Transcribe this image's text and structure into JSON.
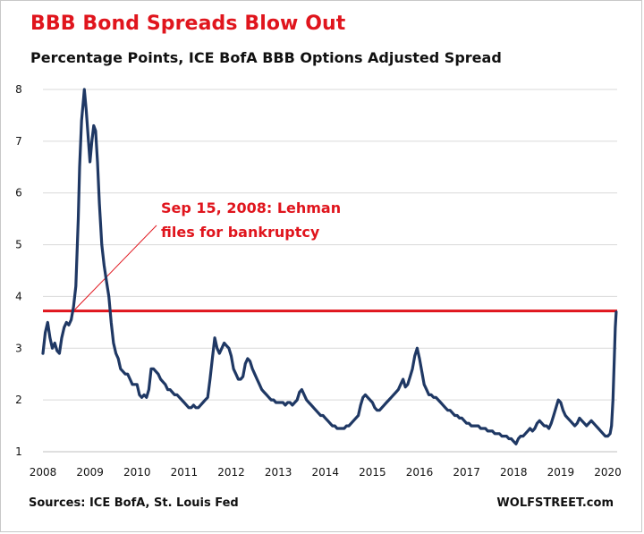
{
  "chart_data": {
    "type": "line",
    "title": "BBB Bond Spreads Blow Out",
    "subtitle": "Percentage Points, ICE BofA BBB Options Adjusted Spread",
    "xlabel": "",
    "ylabel": "",
    "xlim": [
      2008.0,
      2020.2
    ],
    "ylim": [
      1,
      8
    ],
    "x_ticks": [
      "2008",
      "2009",
      "2010",
      "2011",
      "2012",
      "2013",
      "2014",
      "2015",
      "2016",
      "2017",
      "2018",
      "2019",
      "2020"
    ],
    "y_ticks": [
      "1",
      "2",
      "3",
      "4",
      "5",
      "6",
      "7",
      "8"
    ],
    "grid": "horizontal",
    "series": [
      {
        "color": "#1f3864",
        "points": [
          [
            2008.0,
            2.9
          ],
          [
            2008.05,
            3.3
          ],
          [
            2008.1,
            3.5
          ],
          [
            2008.15,
            3.2
          ],
          [
            2008.2,
            3.0
          ],
          [
            2008.25,
            3.1
          ],
          [
            2008.3,
            2.95
          ],
          [
            2008.35,
            2.9
          ],
          [
            2008.4,
            3.2
          ],
          [
            2008.45,
            3.4
          ],
          [
            2008.5,
            3.5
          ],
          [
            2008.55,
            3.45
          ],
          [
            2008.6,
            3.55
          ],
          [
            2008.65,
            3.8
          ],
          [
            2008.7,
            4.2
          ],
          [
            2008.75,
            5.5
          ],
          [
            2008.78,
            6.5
          ],
          [
            2008.82,
            7.4
          ],
          [
            2008.86,
            7.8
          ],
          [
            2008.88,
            8.0
          ],
          [
            2008.92,
            7.6
          ],
          [
            2008.96,
            7.1
          ],
          [
            2009.0,
            6.6
          ],
          [
            2009.04,
            7.0
          ],
          [
            2009.08,
            7.3
          ],
          [
            2009.12,
            7.2
          ],
          [
            2009.16,
            6.6
          ],
          [
            2009.2,
            5.8
          ],
          [
            2009.25,
            5.0
          ],
          [
            2009.3,
            4.6
          ],
          [
            2009.35,
            4.3
          ],
          [
            2009.4,
            4.0
          ],
          [
            2009.45,
            3.5
          ],
          [
            2009.5,
            3.1
          ],
          [
            2009.55,
            2.9
          ],
          [
            2009.6,
            2.8
          ],
          [
            2009.65,
            2.6
          ],
          [
            2009.7,
            2.55
          ],
          [
            2009.75,
            2.5
          ],
          [
            2009.8,
            2.5
          ],
          [
            2009.85,
            2.4
          ],
          [
            2009.9,
            2.3
          ],
          [
            2009.95,
            2.3
          ],
          [
            2010.0,
            2.3
          ],
          [
            2010.05,
            2.1
          ],
          [
            2010.1,
            2.05
          ],
          [
            2010.15,
            2.1
          ],
          [
            2010.2,
            2.05
          ],
          [
            2010.25,
            2.2
          ],
          [
            2010.3,
            2.6
          ],
          [
            2010.35,
            2.6
          ],
          [
            2010.4,
            2.55
          ],
          [
            2010.45,
            2.5
          ],
          [
            2010.5,
            2.4
          ],
          [
            2010.55,
            2.35
          ],
          [
            2010.6,
            2.3
          ],
          [
            2010.65,
            2.2
          ],
          [
            2010.7,
            2.2
          ],
          [
            2010.75,
            2.15
          ],
          [
            2010.8,
            2.1
          ],
          [
            2010.85,
            2.1
          ],
          [
            2010.9,
            2.05
          ],
          [
            2010.95,
            2.0
          ],
          [
            2011.0,
            1.95
          ],
          [
            2011.05,
            1.9
          ],
          [
            2011.1,
            1.85
          ],
          [
            2011.15,
            1.85
          ],
          [
            2011.2,
            1.9
          ],
          [
            2011.25,
            1.85
          ],
          [
            2011.3,
            1.85
          ],
          [
            2011.35,
            1.9
          ],
          [
            2011.4,
            1.95
          ],
          [
            2011.45,
            2.0
          ],
          [
            2011.5,
            2.05
          ],
          [
            2011.55,
            2.4
          ],
          [
            2011.6,
            2.8
          ],
          [
            2011.65,
            3.2
          ],
          [
            2011.7,
            3.0
          ],
          [
            2011.75,
            2.9
          ],
          [
            2011.8,
            3.0
          ],
          [
            2011.85,
            3.1
          ],
          [
            2011.9,
            3.05
          ],
          [
            2011.95,
            3.0
          ],
          [
            2012.0,
            2.85
          ],
          [
            2012.05,
            2.6
          ],
          [
            2012.1,
            2.5
          ],
          [
            2012.15,
            2.4
          ],
          [
            2012.2,
            2.4
          ],
          [
            2012.25,
            2.45
          ],
          [
            2012.3,
            2.7
          ],
          [
            2012.35,
            2.8
          ],
          [
            2012.4,
            2.75
          ],
          [
            2012.45,
            2.6
          ],
          [
            2012.5,
            2.5
          ],
          [
            2012.55,
            2.4
          ],
          [
            2012.6,
            2.3
          ],
          [
            2012.65,
            2.2
          ],
          [
            2012.7,
            2.15
          ],
          [
            2012.75,
            2.1
          ],
          [
            2012.8,
            2.05
          ],
          [
            2012.85,
            2.0
          ],
          [
            2012.9,
            2.0
          ],
          [
            2012.95,
            1.95
          ],
          [
            2013.0,
            1.95
          ],
          [
            2013.05,
            1.95
          ],
          [
            2013.1,
            1.95
          ],
          [
            2013.15,
            1.9
          ],
          [
            2013.2,
            1.95
          ],
          [
            2013.25,
            1.95
          ],
          [
            2013.3,
            1.9
          ],
          [
            2013.35,
            1.95
          ],
          [
            2013.4,
            2.0
          ],
          [
            2013.45,
            2.15
          ],
          [
            2013.5,
            2.2
          ],
          [
            2013.55,
            2.1
          ],
          [
            2013.6,
            2.0
          ],
          [
            2013.65,
            1.95
          ],
          [
            2013.7,
            1.9
          ],
          [
            2013.75,
            1.85
          ],
          [
            2013.8,
            1.8
          ],
          [
            2013.85,
            1.75
          ],
          [
            2013.9,
            1.7
          ],
          [
            2013.95,
            1.7
          ],
          [
            2014.0,
            1.65
          ],
          [
            2014.05,
            1.6
          ],
          [
            2014.1,
            1.55
          ],
          [
            2014.15,
            1.5
          ],
          [
            2014.2,
            1.5
          ],
          [
            2014.25,
            1.45
          ],
          [
            2014.3,
            1.45
          ],
          [
            2014.35,
            1.45
          ],
          [
            2014.4,
            1.45
          ],
          [
            2014.45,
            1.5
          ],
          [
            2014.5,
            1.5
          ],
          [
            2014.55,
            1.55
          ],
          [
            2014.6,
            1.6
          ],
          [
            2014.65,
            1.65
          ],
          [
            2014.7,
            1.7
          ],
          [
            2014.75,
            1.9
          ],
          [
            2014.8,
            2.05
          ],
          [
            2014.85,
            2.1
          ],
          [
            2014.9,
            2.05
          ],
          [
            2014.95,
            2.0
          ],
          [
            2015.0,
            1.95
          ],
          [
            2015.05,
            1.85
          ],
          [
            2015.1,
            1.8
          ],
          [
            2015.15,
            1.8
          ],
          [
            2015.2,
            1.85
          ],
          [
            2015.25,
            1.9
          ],
          [
            2015.3,
            1.95
          ],
          [
            2015.35,
            2.0
          ],
          [
            2015.4,
            2.05
          ],
          [
            2015.45,
            2.1
          ],
          [
            2015.5,
            2.15
          ],
          [
            2015.55,
            2.2
          ],
          [
            2015.6,
            2.3
          ],
          [
            2015.65,
            2.4
          ],
          [
            2015.7,
            2.25
          ],
          [
            2015.75,
            2.3
          ],
          [
            2015.8,
            2.45
          ],
          [
            2015.85,
            2.6
          ],
          [
            2015.9,
            2.85
          ],
          [
            2015.95,
            3.0
          ],
          [
            2016.0,
            2.8
          ],
          [
            2016.05,
            2.55
          ],
          [
            2016.1,
            2.3
          ],
          [
            2016.15,
            2.2
          ],
          [
            2016.2,
            2.1
          ],
          [
            2016.25,
            2.1
          ],
          [
            2016.3,
            2.05
          ],
          [
            2016.35,
            2.05
          ],
          [
            2016.4,
            2.0
          ],
          [
            2016.45,
            1.95
          ],
          [
            2016.5,
            1.9
          ],
          [
            2016.55,
            1.85
          ],
          [
            2016.6,
            1.8
          ],
          [
            2016.65,
            1.8
          ],
          [
            2016.7,
            1.75
          ],
          [
            2016.75,
            1.7
          ],
          [
            2016.8,
            1.7
          ],
          [
            2016.85,
            1.65
          ],
          [
            2016.9,
            1.65
          ],
          [
            2016.95,
            1.6
          ],
          [
            2017.0,
            1.55
          ],
          [
            2017.05,
            1.55
          ],
          [
            2017.1,
            1.5
          ],
          [
            2017.15,
            1.5
          ],
          [
            2017.2,
            1.5
          ],
          [
            2017.25,
            1.5
          ],
          [
            2017.3,
            1.45
          ],
          [
            2017.35,
            1.45
          ],
          [
            2017.4,
            1.45
          ],
          [
            2017.45,
            1.4
          ],
          [
            2017.5,
            1.4
          ],
          [
            2017.55,
            1.4
          ],
          [
            2017.6,
            1.35
          ],
          [
            2017.65,
            1.35
          ],
          [
            2017.7,
            1.35
          ],
          [
            2017.75,
            1.3
          ],
          [
            2017.8,
            1.3
          ],
          [
            2017.85,
            1.3
          ],
          [
            2017.9,
            1.25
          ],
          [
            2017.95,
            1.25
          ],
          [
            2018.0,
            1.2
          ],
          [
            2018.05,
            1.15
          ],
          [
            2018.1,
            1.25
          ],
          [
            2018.15,
            1.3
          ],
          [
            2018.2,
            1.3
          ],
          [
            2018.25,
            1.35
          ],
          [
            2018.3,
            1.4
          ],
          [
            2018.35,
            1.45
          ],
          [
            2018.4,
            1.4
          ],
          [
            2018.45,
            1.45
          ],
          [
            2018.5,
            1.55
          ],
          [
            2018.55,
            1.6
          ],
          [
            2018.6,
            1.55
          ],
          [
            2018.65,
            1.5
          ],
          [
            2018.7,
            1.5
          ],
          [
            2018.75,
            1.45
          ],
          [
            2018.8,
            1.55
          ],
          [
            2018.85,
            1.7
          ],
          [
            2018.9,
            1.85
          ],
          [
            2018.95,
            2.0
          ],
          [
            2019.0,
            1.95
          ],
          [
            2019.05,
            1.8
          ],
          [
            2019.1,
            1.7
          ],
          [
            2019.15,
            1.65
          ],
          [
            2019.2,
            1.6
          ],
          [
            2019.25,
            1.55
          ],
          [
            2019.3,
            1.5
          ],
          [
            2019.35,
            1.55
          ],
          [
            2019.4,
            1.65
          ],
          [
            2019.45,
            1.6
          ],
          [
            2019.5,
            1.55
          ],
          [
            2019.55,
            1.5
          ],
          [
            2019.6,
            1.55
          ],
          [
            2019.65,
            1.6
          ],
          [
            2019.7,
            1.55
          ],
          [
            2019.75,
            1.5
          ],
          [
            2019.8,
            1.45
          ],
          [
            2019.85,
            1.4
          ],
          [
            2019.9,
            1.35
          ],
          [
            2019.95,
            1.3
          ],
          [
            2020.0,
            1.3
          ],
          [
            2020.05,
            1.35
          ],
          [
            2020.08,
            1.5
          ],
          [
            2020.11,
            2.0
          ],
          [
            2020.14,
            2.8
          ],
          [
            2020.16,
            3.4
          ],
          [
            2020.18,
            3.7
          ]
        ]
      }
    ],
    "reference_line": {
      "y": 3.72,
      "color": "#e0151d"
    },
    "annotation": {
      "lines": [
        "Sep 15, 2008: Lehman",
        "files for bankruptcy"
      ],
      "pointer_x": 2008.65,
      "pointer_y": 3.72,
      "color": "#e0151d"
    },
    "source": "Sources: ICE BofA, St. Louis Fed",
    "brand": "WOLFSTREET.com"
  }
}
